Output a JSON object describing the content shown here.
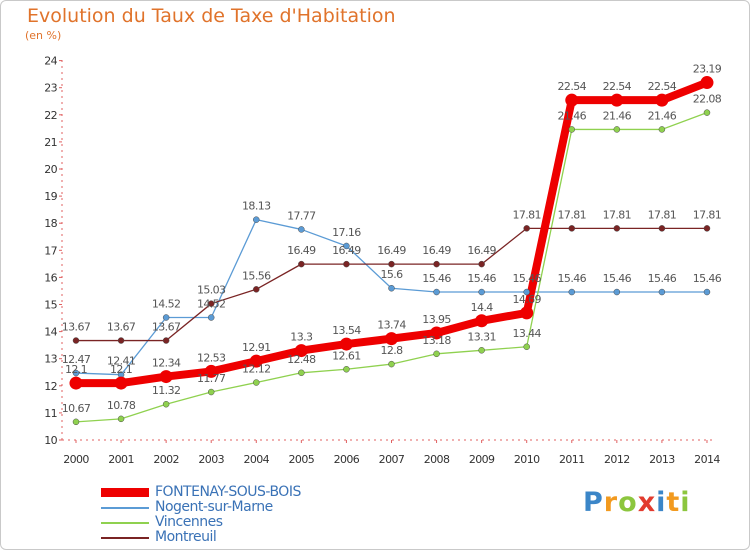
{
  "header": {
    "title": "Evolution du Taux de Taxe d'Habitation",
    "unit_label": "(en %)"
  },
  "logo": {
    "text": "Proxiti",
    "letters": [
      {
        "ch": "P",
        "color": "#3b86c8"
      },
      {
        "ch": "r",
        "color": "#f29a1f"
      },
      {
        "ch": "o",
        "color": "#8cc63e"
      },
      {
        "ch": "x",
        "color": "#e23b2e"
      },
      {
        "ch": "i",
        "color": "#3b86c8"
      },
      {
        "ch": "t",
        "color": "#f29a1f"
      },
      {
        "ch": "i",
        "color": "#8cc63e"
      }
    ]
  },
  "chart_data": {
    "type": "line",
    "x": [
      "2000",
      "2001",
      "2002",
      "2003",
      "2004",
      "2005",
      "2006",
      "2007",
      "2008",
      "2009",
      "2010",
      "2011",
      "2012",
      "2013",
      "2014"
    ],
    "ylim": [
      10,
      24
    ],
    "yticks": [
      10,
      11,
      12,
      13,
      14,
      15,
      16,
      17,
      18,
      19,
      20,
      21,
      22,
      23,
      24
    ],
    "grid": false,
    "legend_position": "bottom-left",
    "series": [
      {
        "name": "FONTENAY-SOUS-BOIS",
        "values": [
          12.1,
          12.1,
          12.34,
          12.53,
          12.91,
          13.3,
          13.54,
          13.74,
          13.95,
          14.4,
          14.69,
          22.54,
          22.54,
          22.54,
          23.19
        ],
        "labels": [
          "12.1",
          "12.1",
          "12.34",
          "12.53",
          "12.91",
          "13.3",
          "13.54",
          "13.74",
          "13.95",
          "14.4",
          "14.69",
          "22.54",
          "22.54",
          "22.54",
          "23.19"
        ],
        "color": "#ee0000",
        "emphasis": true
      },
      {
        "name": "Nogent-sur-Marne",
        "values": [
          12.47,
          12.41,
          14.52,
          14.52,
          18.13,
          17.77,
          17.16,
          15.6,
          15.46,
          15.46,
          15.46,
          15.46,
          15.46,
          15.46,
          15.46
        ],
        "labels": [
          "12.47",
          "12.41",
          "14.52",
          "14.52",
          "18.13",
          "17.77",
          "17.16",
          "15.6",
          "15.46",
          "15.46",
          "15.46",
          "15.46",
          "15.46",
          "15.46",
          "15.46"
        ],
        "color": "#5b9bd5",
        "emphasis": false
      },
      {
        "name": "Vincennes",
        "values": [
          10.67,
          10.78,
          11.32,
          11.77,
          12.12,
          12.48,
          12.61,
          12.8,
          13.18,
          13.31,
          13.44,
          21.46,
          21.46,
          21.46,
          22.08
        ],
        "labels": [
          "10.67",
          "10.78",
          "11.32",
          "11.77",
          "12.12",
          "12.48",
          "12.61",
          "12.8",
          "13.18",
          "13.31",
          "13.44",
          "21.46",
          "21.46",
          "21.46",
          "22.08"
        ],
        "color": "#8fd14f",
        "emphasis": false
      },
      {
        "name": "Montreuil",
        "values": [
          13.67,
          13.67,
          13.67,
          15.03,
          15.56,
          16.49,
          16.49,
          16.49,
          16.49,
          16.49,
          17.81,
          17.81,
          17.81,
          17.81,
          17.81
        ],
        "labels": [
          "13.67",
          "13.67",
          "13.67",
          "15.03",
          "15.56",
          "16.49",
          "16.49",
          "16.49",
          "16.49",
          "16.49",
          "17.81",
          "17.81",
          "17.81",
          "17.81",
          "17.81"
        ],
        "color": "#7a2424",
        "emphasis": false
      }
    ]
  }
}
